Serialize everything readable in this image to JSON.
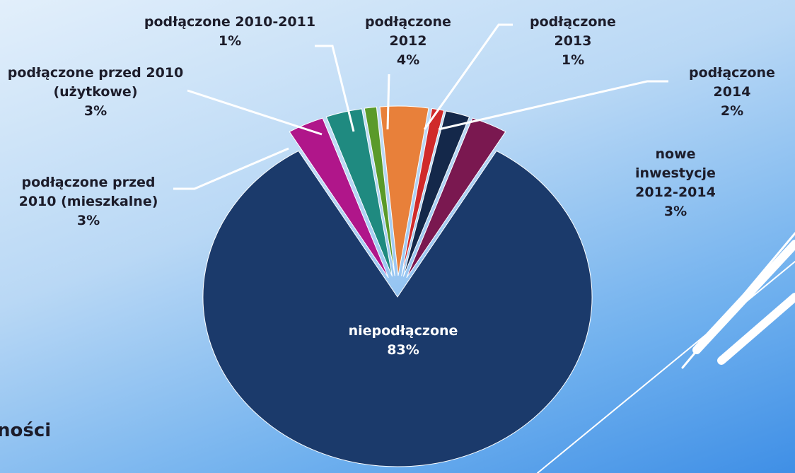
{
  "chart_data": {
    "type": "pie",
    "categories": [
      "niepodłączone",
      "podłączone przed 2010 (mieszkalne)",
      "podłączone przed 2010 (użytkowe)",
      "podłączone 2010-2011",
      "podłączone 2012",
      "podłączone 2013",
      "podłączone 2014",
      "nowe inwestycje 2012-2014"
    ],
    "values": [
      83,
      3,
      3,
      1,
      4,
      1,
      2,
      3
    ],
    "value_labels": [
      "83%",
      "3%",
      "3%",
      "1%",
      "4%",
      "1%",
      "2%",
      "3%"
    ],
    "colors": [
      "#1b3a6b",
      "#b0168a",
      "#1f8a80",
      "#5a9a2a",
      "#e8803a",
      "#d02a2a",
      "#14284a",
      "#7a1850"
    ]
  },
  "slide_text": "ności"
}
